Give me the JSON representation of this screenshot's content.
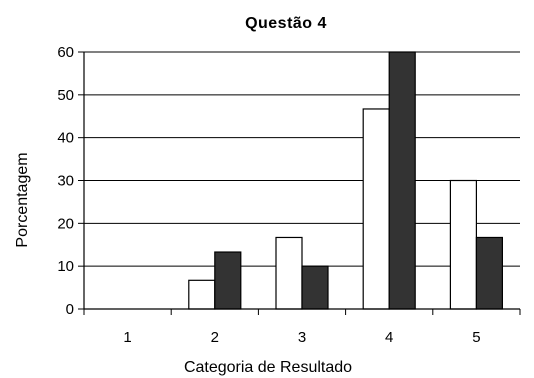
{
  "chart_data": {
    "type": "bar",
    "title": "Questão 4",
    "xlabel": "Categoria de Resultado",
    "ylabel": "Porcentagem",
    "categories": [
      "1",
      "2",
      "3",
      "4",
      "5"
    ],
    "series": [
      {
        "values": [
          0,
          6.7,
          16.7,
          46.7,
          30.0
        ],
        "color": "#ffffff"
      },
      {
        "values": [
          0,
          13.3,
          10.0,
          60.0,
          16.7
        ],
        "color": "#333333"
      }
    ],
    "ylim": [
      0,
      60
    ],
    "yticks": [
      "0",
      "10",
      "20",
      "30",
      "40",
      "50",
      "60"
    ],
    "grid": true,
    "legend": "none"
  }
}
